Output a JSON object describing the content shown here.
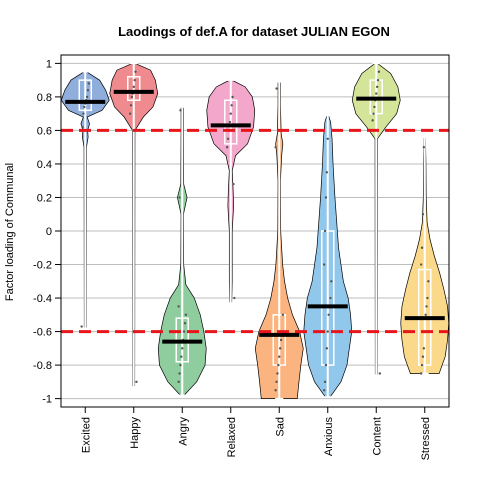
{
  "chart_data": {
    "type": "violin",
    "title": "Laodings of def.A for dataset JULIAN EGON",
    "ylabel": "Factor loading of Communal",
    "xlabel": "",
    "ylim": [
      -1.05,
      1.05
    ],
    "yticks": [
      1,
      0.8,
      0.6,
      0.4,
      0.2,
      0,
      -0.2,
      -0.4,
      -0.6,
      -0.8,
      -1
    ],
    "ytick_labels": [
      "1",
      "0.8",
      "0.6",
      "0.4",
      "0.2",
      "0",
      "-0.2",
      "-0.4",
      "-0.6",
      "-0.8",
      "-1"
    ],
    "grid": true,
    "threshold_lines": [
      0.6,
      -0.6
    ],
    "threshold_color": "#e8161b",
    "categories": [
      "Excited",
      "Happy",
      "Angry",
      "Relaxed",
      "Sad",
      "Anxious",
      "Content",
      "Stressed"
    ],
    "series": [
      {
        "category": "Excited",
        "color": "#8faedc",
        "median": 0.77,
        "q1": 0.72,
        "q3": 0.9,
        "whisker_low": -0.58,
        "whisker_high": 0.95,
        "density": [
          [
            -0.58,
            0.04
          ],
          [
            0.5,
            0.05
          ],
          [
            0.56,
            0.12
          ],
          [
            0.6,
            0.1
          ],
          [
            0.64,
            0.18
          ],
          [
            0.68,
            0.08
          ],
          [
            0.72,
            0.7
          ],
          [
            0.78,
            1.0
          ],
          [
            0.84,
            0.85
          ],
          [
            0.9,
            0.6
          ],
          [
            0.95,
            0.05
          ]
        ],
        "points": [
          0.6,
          0.62,
          0.7,
          0.74,
          0.76,
          0.78,
          0.8,
          0.84,
          0.88,
          -0.57
        ]
      },
      {
        "category": "Happy",
        "color": "#ef8a8e",
        "median": 0.83,
        "q1": 0.78,
        "q3": 0.92,
        "whisker_low": -0.93,
        "whisker_high": 1.0,
        "density": [
          [
            -0.93,
            0.04
          ],
          [
            0.6,
            0.05
          ],
          [
            0.68,
            0.4
          ],
          [
            0.74,
            0.8
          ],
          [
            0.82,
            1.0
          ],
          [
            0.9,
            0.9
          ],
          [
            0.96,
            0.7
          ],
          [
            1.0,
            0.05
          ]
        ],
        "points": [
          0.7,
          0.75,
          0.8,
          0.82,
          0.86,
          0.9,
          0.95,
          -0.9
        ]
      },
      {
        "category": "Angry",
        "color": "#8fcd9f",
        "median": -0.66,
        "q1": -0.78,
        "q3": -0.52,
        "whisker_low": -0.98,
        "whisker_high": 0.74,
        "density": [
          [
            -0.98,
            0.08
          ],
          [
            -0.9,
            0.6
          ],
          [
            -0.8,
            0.95
          ],
          [
            -0.7,
            1.0
          ],
          [
            -0.6,
            0.9
          ],
          [
            -0.5,
            0.75
          ],
          [
            -0.4,
            0.5
          ],
          [
            -0.32,
            0.15
          ],
          [
            -0.2,
            0.06
          ],
          [
            0.1,
            0.05
          ],
          [
            0.2,
            0.2
          ],
          [
            0.28,
            0.06
          ],
          [
            0.6,
            0.05
          ],
          [
            0.74,
            0.05
          ]
        ],
        "points": [
          -0.9,
          -0.85,
          -0.8,
          -0.75,
          -0.7,
          -0.65,
          -0.6,
          -0.55,
          -0.5,
          -0.45,
          0.2,
          0.72
        ]
      },
      {
        "category": "Relaxed",
        "color": "#f2a7cb",
        "median": 0.63,
        "q1": 0.52,
        "q3": 0.78,
        "whisker_low": -0.43,
        "whisker_high": 0.9,
        "density": [
          [
            -0.43,
            0.04
          ],
          [
            -0.3,
            0.06
          ],
          [
            0.0,
            0.06
          ],
          [
            0.15,
            0.12
          ],
          [
            0.24,
            0.1
          ],
          [
            0.36,
            0.06
          ],
          [
            0.45,
            0.2
          ],
          [
            0.52,
            0.7
          ],
          [
            0.62,
            0.95
          ],
          [
            0.72,
            1.0
          ],
          [
            0.8,
            0.9
          ],
          [
            0.86,
            0.6
          ],
          [
            0.9,
            0.05
          ]
        ],
        "points": [
          0.5,
          0.55,
          0.6,
          0.65,
          0.7,
          0.75,
          0.8,
          0.28,
          -0.4
        ]
      },
      {
        "category": "Sad",
        "color": "#fbb37f",
        "median": -0.62,
        "q1": -0.8,
        "q3": -0.5,
        "whisker_low": -1.0,
        "whisker_high": 0.89,
        "density": [
          [
            -1.0,
            0.75
          ],
          [
            -0.9,
            0.82
          ],
          [
            -0.8,
            0.9
          ],
          [
            -0.7,
            1.0
          ],
          [
            -0.6,
            0.85
          ],
          [
            -0.5,
            0.55
          ],
          [
            -0.4,
            0.35
          ],
          [
            -0.3,
            0.22
          ],
          [
            -0.2,
            0.14
          ],
          [
            0.0,
            0.06
          ],
          [
            0.3,
            0.05
          ],
          [
            0.45,
            0.1
          ],
          [
            0.52,
            0.15
          ],
          [
            0.58,
            0.08
          ],
          [
            0.75,
            0.05
          ],
          [
            0.89,
            0.05
          ]
        ],
        "points": [
          -0.95,
          -0.9,
          -0.85,
          -0.8,
          -0.75,
          -0.7,
          -0.65,
          -0.6,
          -0.5,
          0.5,
          0.85
        ]
      },
      {
        "category": "Anxious",
        "color": "#92c7ec",
        "median": -0.45,
        "q1": -0.8,
        "q3": 0.0,
        "whisker_low": -0.99,
        "whisker_high": 0.69,
        "density": [
          [
            -0.99,
            0.1
          ],
          [
            -0.9,
            0.55
          ],
          [
            -0.8,
            0.8
          ],
          [
            -0.7,
            0.9
          ],
          [
            -0.6,
            1.0
          ],
          [
            -0.5,
            0.95
          ],
          [
            -0.4,
            0.85
          ],
          [
            -0.3,
            0.65
          ],
          [
            -0.2,
            0.55
          ],
          [
            -0.1,
            0.45
          ],
          [
            0.0,
            0.4
          ],
          [
            0.2,
            0.3
          ],
          [
            0.4,
            0.22
          ],
          [
            0.55,
            0.18
          ],
          [
            0.65,
            0.12
          ],
          [
            0.69,
            0.03
          ]
        ],
        "points": [
          -0.95,
          -0.9,
          -0.8,
          -0.7,
          -0.6,
          -0.5,
          -0.45,
          -0.4,
          -0.3,
          -0.2,
          0.0,
          0.2,
          0.35,
          0.55
        ]
      },
      {
        "category": "Content",
        "color": "#d4e59a",
        "median": 0.79,
        "q1": 0.7,
        "q3": 0.9,
        "whisker_low": -0.86,
        "whisker_high": 1.0,
        "density": [
          [
            -0.86,
            0.04
          ],
          [
            0.55,
            0.05
          ],
          [
            0.62,
            0.4
          ],
          [
            0.7,
            0.85
          ],
          [
            0.78,
            1.0
          ],
          [
            0.86,
            0.9
          ],
          [
            0.94,
            0.6
          ],
          [
            1.0,
            0.05
          ]
        ],
        "points": [
          0.66,
          0.7,
          0.74,
          0.78,
          0.82,
          0.86,
          0.9,
          0.95,
          -0.85
        ]
      },
      {
        "category": "Stressed",
        "color": "#fbd98a",
        "median": -0.52,
        "q1": -0.8,
        "q3": -0.23,
        "whisker_low": -0.85,
        "whisker_high": 0.56,
        "density": [
          [
            -0.85,
            0.6
          ],
          [
            -0.75,
            0.85
          ],
          [
            -0.65,
            0.95
          ],
          [
            -0.55,
            1.0
          ],
          [
            -0.45,
            0.95
          ],
          [
            -0.35,
            0.8
          ],
          [
            -0.25,
            0.62
          ],
          [
            -0.15,
            0.4
          ],
          [
            -0.05,
            0.22
          ],
          [
            0.05,
            0.1
          ],
          [
            0.2,
            0.06
          ],
          [
            0.4,
            0.05
          ],
          [
            0.56,
            0.03
          ]
        ],
        "points": [
          -0.85,
          -0.8,
          -0.75,
          -0.7,
          -0.6,
          -0.5,
          -0.45,
          -0.4,
          -0.3,
          -0.2,
          -0.1,
          0.1,
          0.5
        ]
      }
    ]
  }
}
